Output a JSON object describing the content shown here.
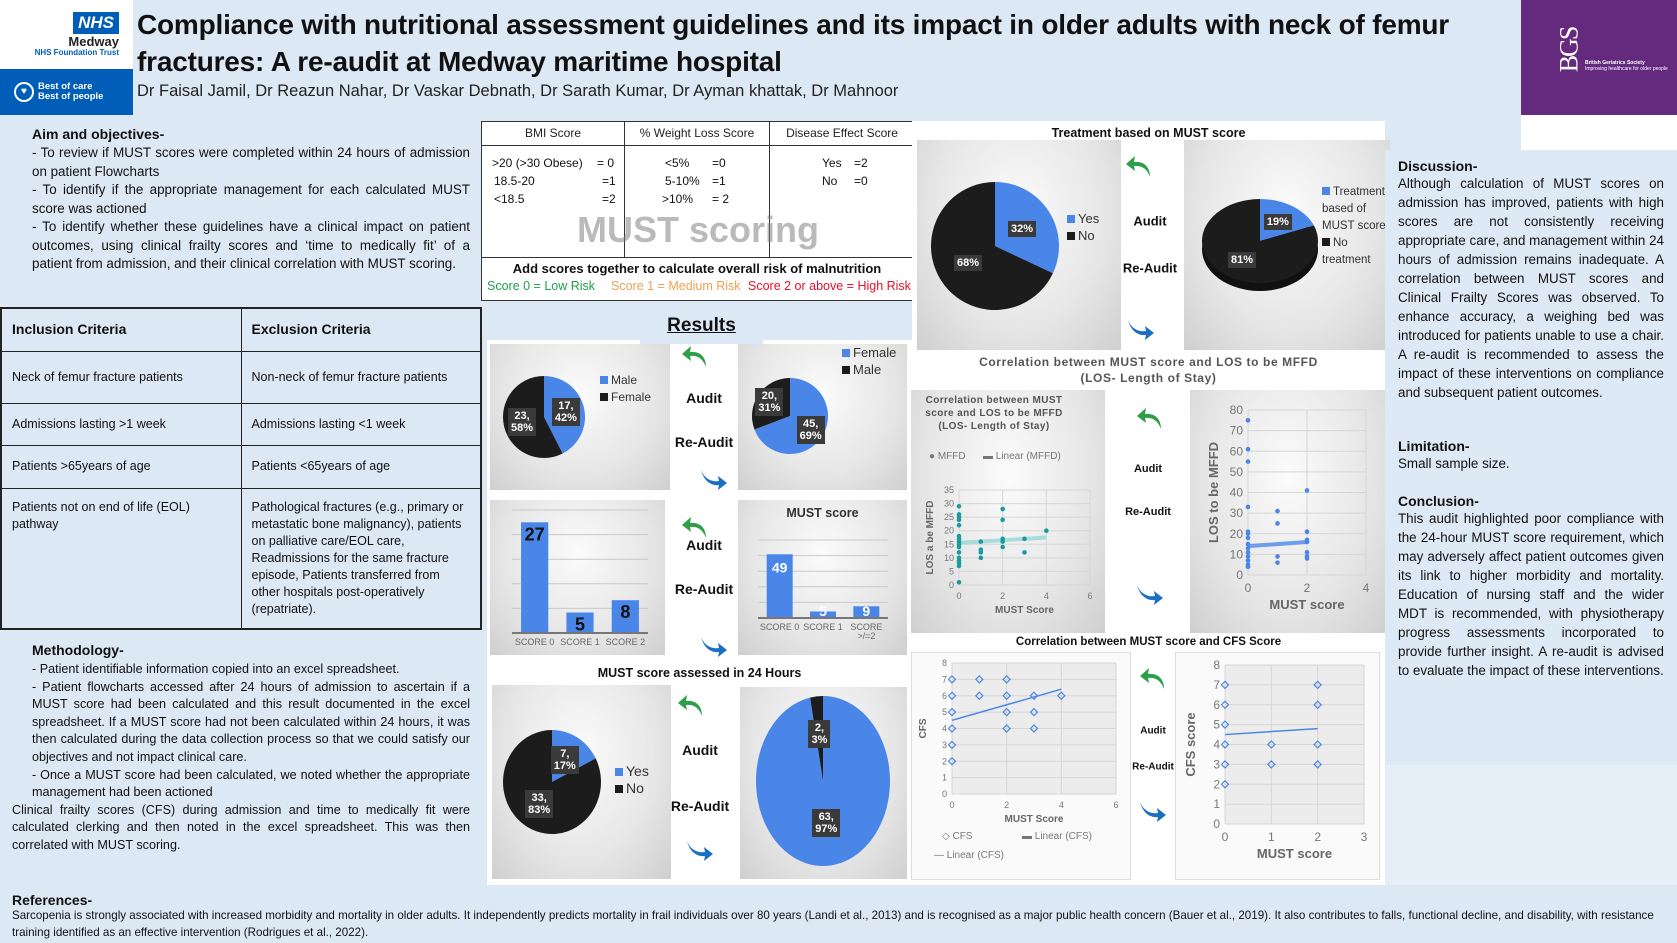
{
  "header": {
    "logo_nhs": "NHS",
    "logo_org": "Medway",
    "logo_trust": "NHS Foundation Trust",
    "logo_tagline": [
      "Best of care",
      "Best of people"
    ],
    "title": "Compliance with nutritional assessment guidelines and its impact in older adults with neck of femur fractures: A re-audit at Medway maritime hospital",
    "authors": "Dr Faisal Jamil, Dr Reazun Nahar, Dr Vaskar Debnath, Dr Sarath Kumar, Dr Ayman khattak, Dr Mahnoor",
    "bgs_logo": {
      "mono": "BGS",
      "name": "British Geriatrics Society",
      "tagline": "Improving healthcare for older people"
    }
  },
  "aims": {
    "heading": "Aim and objectives-",
    "items": [
      "- To review if MUST scores were completed within 24 hours of admission on patient Flowcharts",
      "- To identify if the appropriate management for each calculated MUST score was actioned",
      "- To identify whether these guidelines have a clinical impact on patient outcomes, using clinical frailty scores and ‘time to medically fit’ of a patient from admission, and their clinical correlation with MUST scoring."
    ]
  },
  "criteria": {
    "headers": [
      "Inclusion Criteria",
      "Exclusion Criteria"
    ],
    "rows": [
      [
        "Neck of femur fracture patients",
        "Non-neck of femur fracture patients"
      ],
      [
        "Admissions lasting >1 week",
        "Admissions lasting <1 week"
      ],
      [
        "Patients >65years of age",
        "Patients <65years of age"
      ],
      [
        "Patients not on end of life (EOL) pathway",
        "Pathological fractures (e.g., primary or metastatic bone malignancy), patients on palliative care/EOL care, Readmissions for the same fracture episode, Patients transferred from other hospitals post-operatively (repatriate)."
      ]
    ]
  },
  "methodology": {
    "heading": "Methodology-",
    "items": [
      "- Patient identifiable information copied into an excel spreadsheet.",
      "- Patient flowcharts accessed after 24 hours of admission to ascertain if a MUST score had been calculated and this result documented in the excel spreadsheet. If a MUST score had not been calculated within 24 hours, it was then calculated during the data collection process so that we could satisfy our objectives and not impact clinical care.",
      "- Once a MUST score had been calculated, we noted whether the appropriate management had been actioned",
      "Clinical frailty scores (CFS) during admission and time to medically fit were calculated clerking and then noted in the excel spreadsheet. This was then correlated with MUST scoring."
    ]
  },
  "must_table": {
    "watermark": "MUST scoring",
    "headers": [
      "BMI Score",
      "% Weight Loss Score",
      "Disease Effect Score"
    ],
    "bmi": [
      [
        ">20 (>30 Obese)",
        "= 0"
      ],
      [
        "18.5-20",
        "=1"
      ],
      [
        "<18.5",
        "=2"
      ]
    ],
    "weight_loss": [
      [
        "<5%",
        "=0"
      ],
      [
        "5-10%",
        "=1"
      ],
      [
        ">10%",
        "= 2"
      ]
    ],
    "disease": [
      [
        "Yes",
        "=2"
      ],
      [
        "No",
        "=0"
      ]
    ],
    "summary": "Add scores together to calculate overall risk of malnutrition",
    "risks": [
      {
        "text": "Score 0 = Low Risk",
        "color": "#1aa34a"
      },
      {
        "text": "Score 1 = Medium Risk",
        "color": "#f0a050"
      },
      {
        "text": "Score 2 or above = High Risk",
        "color": "#e8102a"
      }
    ]
  },
  "results": {
    "heading": "Results",
    "audit_label": "Audit",
    "reaudit_label": "Re-Audit",
    "treatment_title": "Treatment based on MUST score",
    "los_title": "Correlation between MUST score and LOS to be MFFD\n(LOS- Length of Stay)",
    "cfs_title": "Correlation between MUST score and CFS Score",
    "assessed_title": "MUST score assessed in 24 Hours"
  },
  "colors": {
    "blue": "#4a86e8",
    "black": "#1c1c1c",
    "teal": "#1b9aa0",
    "green_arrow": "#2e9e48",
    "blue_arrow": "#1a6fc4",
    "nhs_blue": "#005eb8",
    "bgs_purple": "#642a7d"
  },
  "chart_data": [
    {
      "id": "gender-audit",
      "type": "pie",
      "slices": [
        {
          "name": "Male",
          "value": 17,
          "label": "17,\n42%",
          "color": "#4a86e8"
        },
        {
          "name": "Female",
          "value": 23,
          "label": "23,\n58%",
          "color": "#1c1c1c"
        }
      ]
    },
    {
      "id": "gender-reaudit",
      "type": "pie",
      "slices": [
        {
          "name": "Female",
          "value": 45,
          "label": "45,\n69%",
          "color": "#4a86e8"
        },
        {
          "name": "Male",
          "value": 20,
          "label": "20,\n31%",
          "color": "#1c1c1c"
        }
      ]
    },
    {
      "id": "must-audit",
      "type": "bar",
      "title": "",
      "categories": [
        "SCORE 0",
        "SCORE 1",
        "SCORE 2"
      ],
      "values": [
        27,
        5,
        8
      ],
      "ylim": [
        0,
        30
      ]
    },
    {
      "id": "must-reaudit",
      "type": "bar",
      "title": "MUST score",
      "categories": [
        "SCORE 0",
        "SCORE 1",
        "SCORE >/=2"
      ],
      "values": [
        49,
        5,
        9
      ],
      "ylim": [
        0,
        60
      ]
    },
    {
      "id": "assessed-audit",
      "type": "pie",
      "slices": [
        {
          "name": "Yes",
          "value": 7,
          "label": "7,\n17%",
          "color": "#4a86e8"
        },
        {
          "name": "No",
          "value": 33,
          "label": "33,\n83%",
          "color": "#1c1c1c"
        }
      ]
    },
    {
      "id": "assessed-reaudit",
      "type": "pie",
      "slices": [
        {
          "name": "Yes",
          "value": 63,
          "label": "63,\n97%",
          "color": "#4a86e8"
        },
        {
          "name": "No",
          "value": 2,
          "label": "2,\n3%",
          "color": "#1c1c1c"
        }
      ]
    },
    {
      "id": "treatment-audit",
      "type": "pie",
      "slices": [
        {
          "name": "Yes",
          "value": 32,
          "label": "32%",
          "color": "#4a86e8"
        },
        {
          "name": "No",
          "value": 68,
          "label": "68%",
          "color": "#1c1c1c"
        }
      ]
    },
    {
      "id": "treatment-reaudit",
      "type": "pie",
      "slices": [
        {
          "name": "Treatment based of MUST score",
          "value": 19,
          "label": "19%",
          "color": "#4a86e8"
        },
        {
          "name": "No treatment",
          "value": 81,
          "label": "81%",
          "color": "#1c1c1c"
        }
      ]
    },
    {
      "id": "los-audit",
      "type": "scatter",
      "title": "Correlation between MUST score and LOS to be MFFD (LOS- Length of Stay)",
      "xlabel": "MUST Score",
      "ylabel": "LOS a be MFFD",
      "xlim": [
        0,
        6
      ],
      "ylim": [
        0,
        35
      ],
      "xticks": [
        0,
        2,
        4,
        6
      ],
      "yticks": [
        0,
        5,
        10,
        15,
        20,
        25,
        30,
        35
      ],
      "series": [
        {
          "name": "MFFD",
          "marker": "dot",
          "color": "#1b9aa0",
          "x": [
            0,
            0,
            0,
            0,
            0,
            0,
            0,
            0,
            0,
            0,
            0,
            0,
            0,
            0,
            0,
            0,
            1,
            1,
            1,
            1,
            2,
            2,
            2,
            2,
            2,
            3,
            3,
            4
          ],
          "y": [
            1,
            7,
            8,
            9,
            10,
            12,
            14,
            15,
            16,
            17,
            18,
            22,
            24,
            25,
            26,
            29,
            10,
            12,
            13,
            16,
            14,
            16,
            17,
            24,
            28,
            12,
            17,
            20
          ]
        }
      ],
      "trend": {
        "name": "Linear (MFFD)",
        "x": [
          0,
          4
        ],
        "y": [
          15.5,
          17.5
        ],
        "color": "#a8dcdc"
      }
    },
    {
      "id": "los-reaudit",
      "type": "scatter",
      "xlabel": "MUST score",
      "ylabel": "LOS to be MFFD",
      "xlim": [
        0,
        4
      ],
      "ylim": [
        0,
        80
      ],
      "xticks": [
        0,
        2,
        4
      ],
      "yticks": [
        0,
        10,
        20,
        30,
        40,
        50,
        60,
        70,
        80
      ],
      "series": [
        {
          "marker": "dot",
          "color": "#4a86e8",
          "x": [
            0,
            0,
            0,
            0,
            0,
            0,
            0,
            0,
            0,
            0,
            0,
            0,
            0,
            0,
            1,
            1,
            1,
            1,
            2,
            2,
            2,
            2,
            2,
            2,
            2
          ],
          "y": [
            75,
            61,
            55,
            33,
            21,
            20,
            18,
            15,
            13,
            11,
            9,
            7,
            5,
            4,
            31,
            25,
            9,
            6,
            41,
            21,
            17,
            16,
            11,
            9,
            8
          ]
        }
      ],
      "trend": {
        "x": [
          0,
          2
        ],
        "y": [
          14,
          16
        ],
        "color": "#6d9eeb"
      }
    },
    {
      "id": "cfs-audit",
      "type": "scatter",
      "xlabel": "MUST Score",
      "ylabel": "CFS",
      "xlim": [
        0,
        6
      ],
      "ylim": [
        0,
        8
      ],
      "xticks": [
        0,
        2,
        4,
        6
      ],
      "yticks": [
        0,
        1,
        2,
        3,
        4,
        5,
        6,
        7,
        8
      ],
      "series": [
        {
          "name": "CFS",
          "marker": "diamond",
          "color": "#4a86e8",
          "x": [
            0,
            0,
            0,
            0,
            0,
            0,
            1,
            1,
            2,
            2,
            2,
            2,
            3,
            3,
            3,
            4
          ],
          "y": [
            7,
            6,
            5,
            4,
            3,
            2,
            7,
            6,
            7,
            6,
            5,
            4,
            6,
            5,
            4,
            6
          ]
        }
      ],
      "trend": {
        "name": "Linear (CFS)",
        "x": [
          0,
          4
        ],
        "y": [
          4.5,
          6.4
        ],
        "color": "#4a86e8"
      },
      "legend_extra": "Linear (CFS)"
    },
    {
      "id": "cfs-reaudit",
      "type": "scatter",
      "xlabel": "MUST score",
      "ylabel": "CFS score",
      "xlim": [
        0,
        3
      ],
      "ylim": [
        0,
        8
      ],
      "xticks": [
        0,
        1,
        2,
        3
      ],
      "yticks": [
        0,
        1,
        2,
        3,
        4,
        5,
        6,
        7,
        8
      ],
      "series": [
        {
          "marker": "diamond",
          "color": "#4a86e8",
          "x": [
            0,
            0,
            0,
            0,
            0,
            0,
            1,
            1,
            2,
            2,
            2,
            2
          ],
          "y": [
            7,
            6,
            5,
            4,
            3,
            2,
            4,
            3,
            7,
            6,
            4,
            3
          ]
        }
      ],
      "trend": {
        "x": [
          0,
          2
        ],
        "y": [
          4.5,
          4.8
        ],
        "color": "#4a86e8"
      }
    }
  ],
  "discussion": {
    "heading": "Discussion-",
    "text": "Although calculation of MUST scores on admission has improved, patients with high scores are not consistently receiving appropriate care, and management within 24 hours of admission remains inadequate. A correlation between MUST scores and Clinical Frailty Scores was observed. To enhance accuracy, a weighing bed was introduced for patients unable to use a chair. A re-audit is recommended to assess the impact of these interventions on compliance and subsequent patient outcomes."
  },
  "limitation": {
    "heading": "Limitation-",
    "text": "Small sample size."
  },
  "conclusion": {
    "heading": "Conclusion-",
    "text": "This audit highlighted poor compliance with the 24-hour MUST score requirement, which may adversely affect patient outcomes given its link to higher morbidity and mortality. Education of nursing staff and the wider MDT is recommended, with physiotherapy progress assessments incorporated to provide further insight. A re-audit is advised to evaluate the impact of these interventions."
  },
  "references": {
    "heading": "References-",
    "text": "Sarcopenia is strongly associated with increased morbidity and mortality in older adults. It independently predicts mortality in frail individuals over 80 years (Landi et al., 2013) and is recognised as a major public health concern (Bauer et al., 2019). It also contributes to falls, functional decline, and disability, with resistance training identified as an effective intervention (Rodrigues et al., 2022)."
  }
}
